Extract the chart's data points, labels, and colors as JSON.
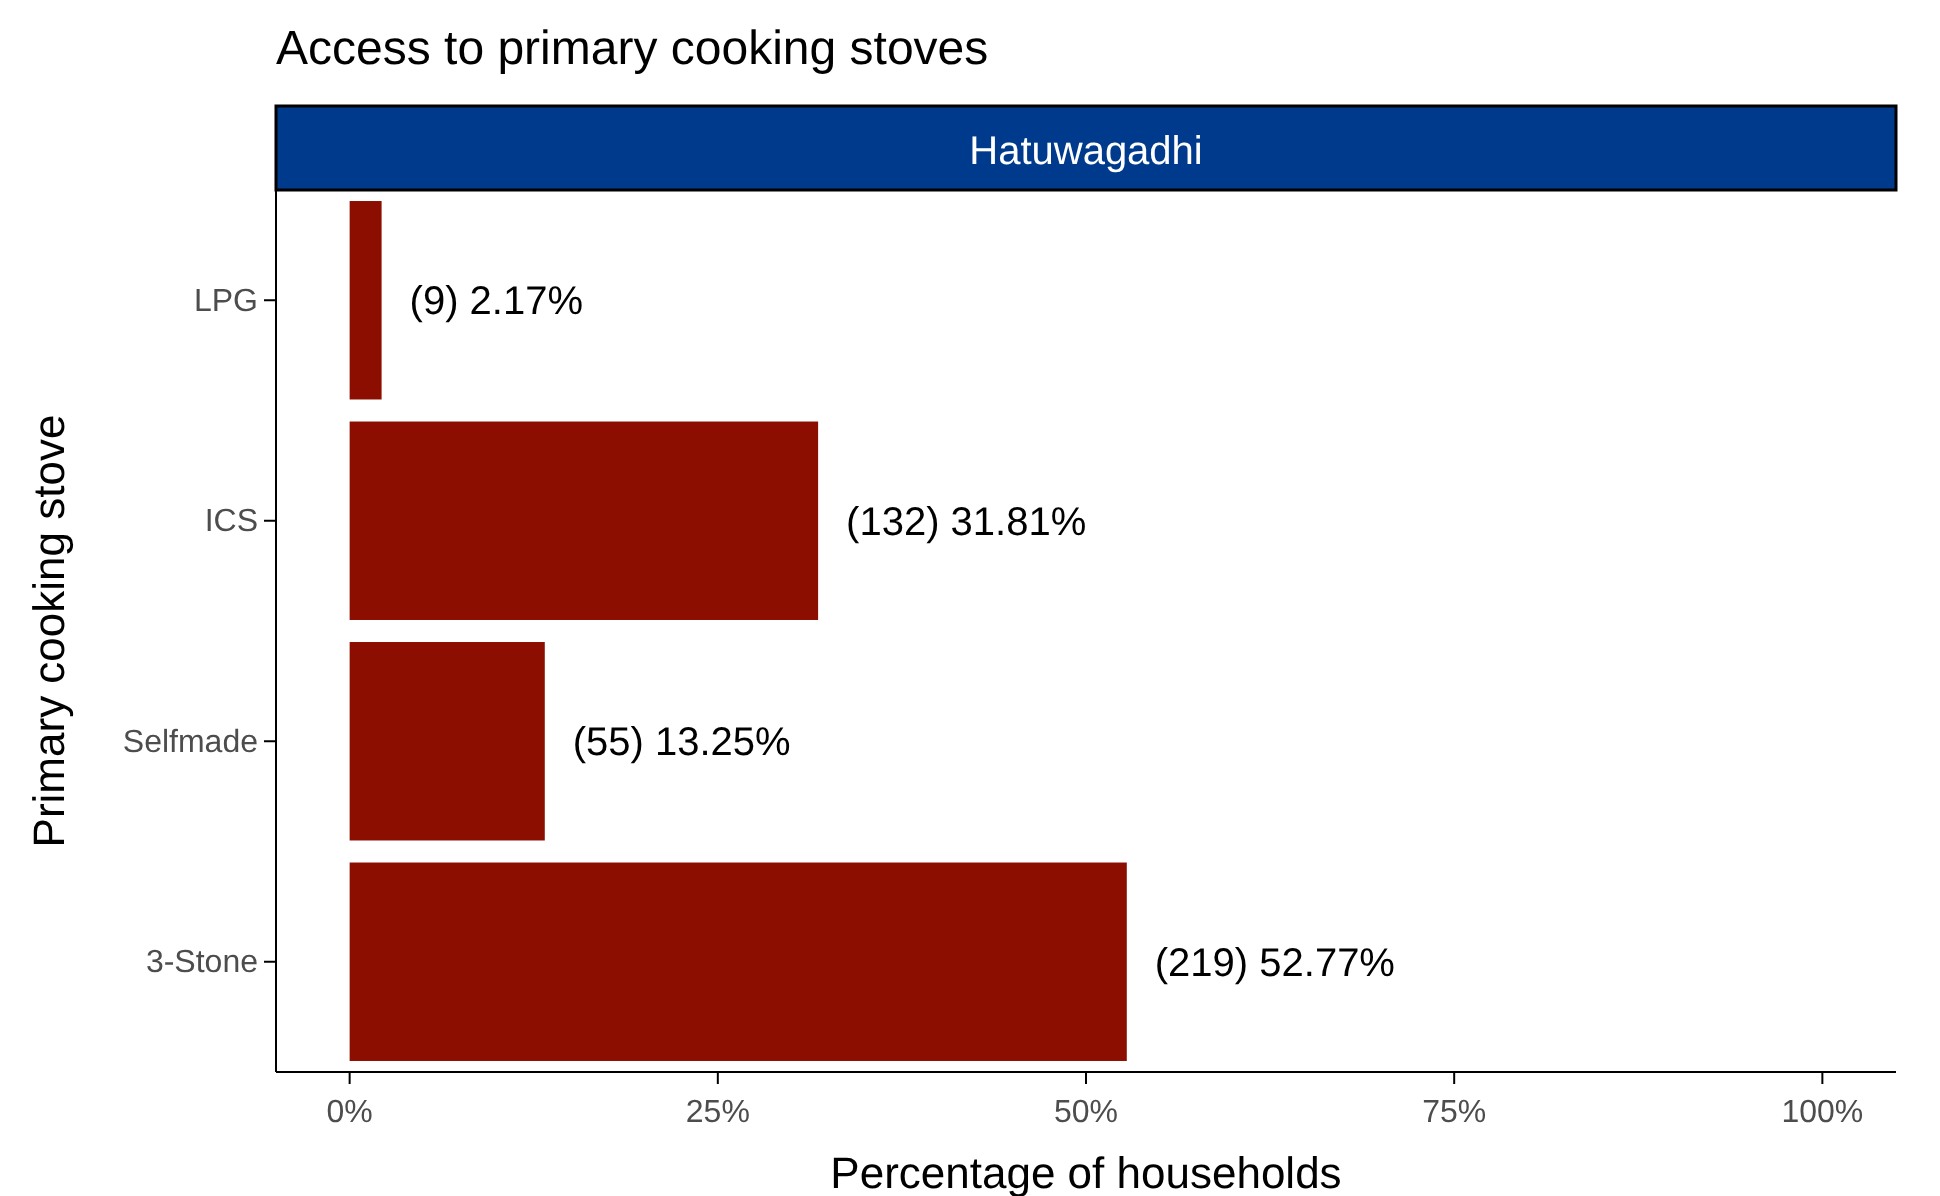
{
  "chart_data": {
    "type": "bar",
    "orientation": "horizontal",
    "title": "Access to primary cooking stoves",
    "subtitle": "Hatuwagadhi",
    "xlabel": "Percentage of households",
    "ylabel": "Primary cooking stove",
    "categories": [
      "LPG",
      "ICS",
      "Selfmade",
      "3-Stone"
    ],
    "values": [
      2.17,
      31.81,
      13.25,
      52.77
    ],
    "value_labels": [
      "(9) 2.17%",
      "(132) 31.81%",
      "(55) 13.25%",
      "(219) 52.77%"
    ],
    "color": "#8b0e00",
    "xlim": [
      -5,
      105
    ],
    "xticks": [
      {
        "value": 0,
        "label": "0%"
      },
      {
        "value": 25,
        "label": "25%"
      },
      {
        "value": 50,
        "label": "50%"
      },
      {
        "value": 75,
        "label": "75%"
      },
      {
        "value": 100,
        "label": "100%"
      }
    ],
    "grid": false
  }
}
